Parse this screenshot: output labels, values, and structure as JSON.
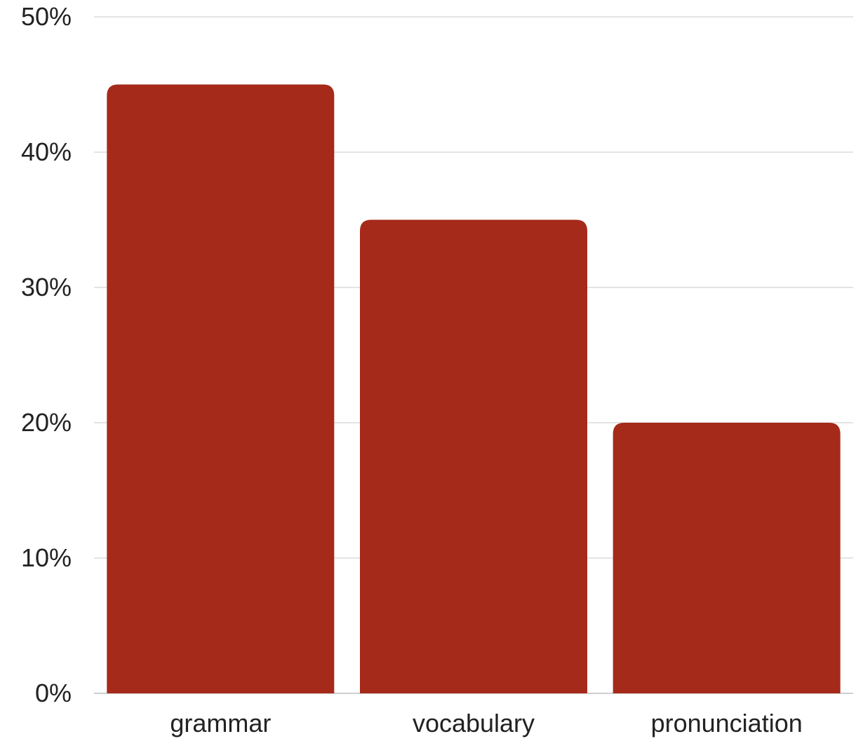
{
  "chart_data": {
    "type": "bar",
    "categories": [
      "grammar",
      "vocabulary",
      "pronunciation"
    ],
    "values": [
      45,
      35,
      20
    ],
    "ylim": [
      0,
      50
    ],
    "yticks": [
      0,
      10,
      20,
      30,
      40,
      50
    ],
    "ytick_suffix": "%",
    "grid": true,
    "legend": "none",
    "bar_color": "#a52a1a",
    "grid_color": "#dcdcdc"
  }
}
